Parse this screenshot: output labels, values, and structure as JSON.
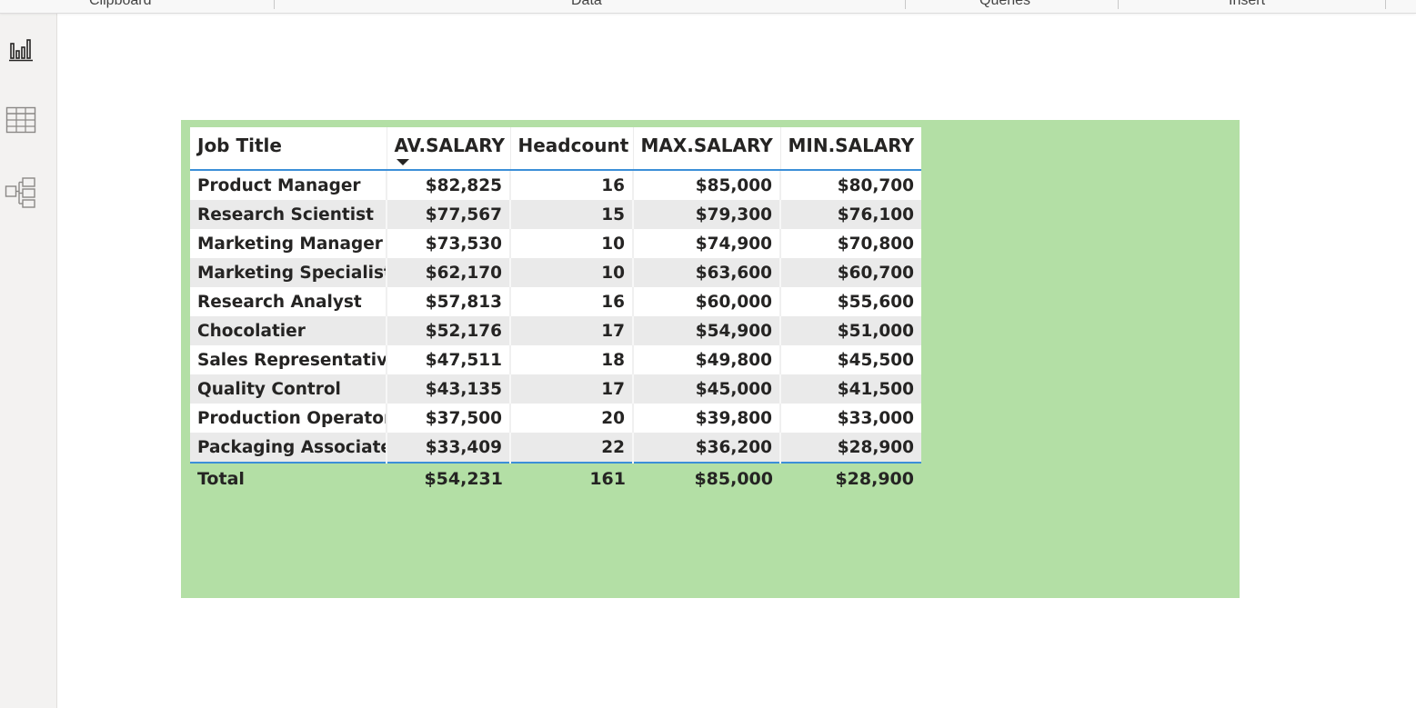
{
  "ribbon": {
    "groups": [
      "Clipboard",
      "Data",
      "Queries",
      "Insert"
    ]
  },
  "rail": {
    "items": [
      {
        "icon": "report-view-icon"
      },
      {
        "icon": "table-view-icon"
      },
      {
        "icon": "model-view-icon"
      }
    ]
  },
  "visual": {
    "background": "#b3dfa5",
    "headers": [
      "Job Title",
      "AV.SALARY",
      "Headcount",
      "MAX.SALARY",
      "MIN.SALARY"
    ],
    "sorted_column": "AV.SALARY",
    "rows": [
      {
        "job": "Product Manager",
        "avg": "$82,825",
        "count": "16",
        "max": "$85,000",
        "min": "$80,700"
      },
      {
        "job": "Research Scientist",
        "avg": "$77,567",
        "count": "15",
        "max": "$79,300",
        "min": "$76,100"
      },
      {
        "job": "Marketing Manager",
        "avg": "$73,530",
        "count": "10",
        "max": "$74,900",
        "min": "$70,800"
      },
      {
        "job": "Marketing Specialist",
        "avg": "$62,170",
        "count": "10",
        "max": "$63,600",
        "min": "$60,700"
      },
      {
        "job": "Research Analyst",
        "avg": "$57,813",
        "count": "16",
        "max": "$60,000",
        "min": "$55,600"
      },
      {
        "job": "Chocolatier",
        "avg": "$52,176",
        "count": "17",
        "max": "$54,900",
        "min": "$51,000"
      },
      {
        "job": "Sales Representative",
        "avg": "$47,511",
        "count": "18",
        "max": "$49,800",
        "min": "$45,500"
      },
      {
        "job": "Quality Control",
        "avg": "$43,135",
        "count": "17",
        "max": "$45,000",
        "min": "$41,500"
      },
      {
        "job": "Production Operator",
        "avg": "$37,500",
        "count": "20",
        "max": "$39,800",
        "min": "$33,000"
      },
      {
        "job": "Packaging Associate",
        "avg": "$33,409",
        "count": "22",
        "max": "$36,200",
        "min": "$28,900"
      }
    ],
    "total": {
      "label": "Total",
      "avg": "$54,231",
      "count": "161",
      "max": "$85,000",
      "min": "$28,900"
    }
  }
}
